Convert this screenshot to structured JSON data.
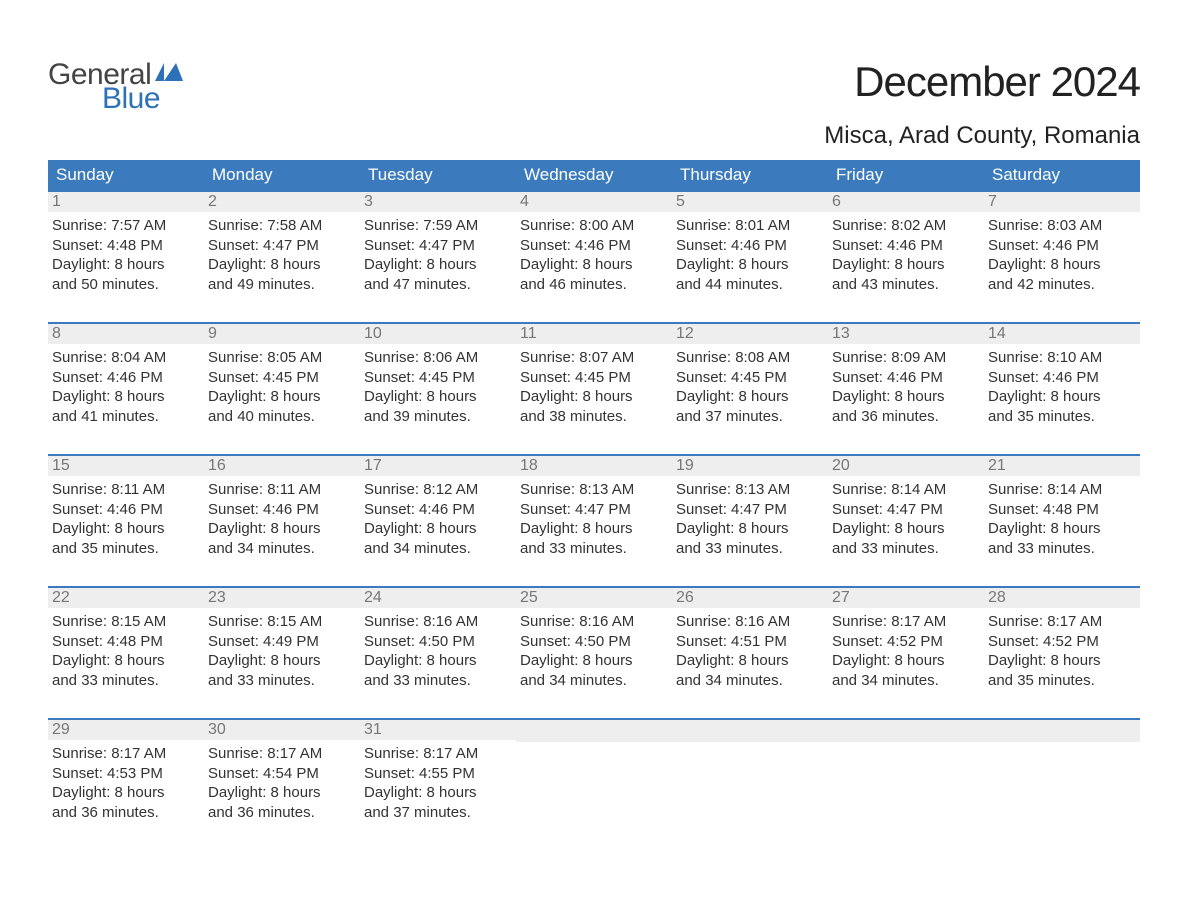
{
  "logo": {
    "text1": "General",
    "text2": "Blue",
    "flag_color": "#2d72b8",
    "text1_color": "#444444",
    "text2_color": "#2d72b8"
  },
  "title": "December 2024",
  "location": "Misca, Arad County, Romania",
  "header_bg": "#3a7abd",
  "header_fg": "#ffffff",
  "daynum_bg": "#eeeeee",
  "daynum_fg": "#777777",
  "body_fg": "#333333",
  "row_border_color": "#3a7abd",
  "weekdays": [
    "Sunday",
    "Monday",
    "Tuesday",
    "Wednesday",
    "Thursday",
    "Friday",
    "Saturday"
  ],
  "weeks": [
    [
      {
        "n": "1",
        "sunrise": "7:57 AM",
        "sunset": "4:48 PM",
        "dl1": "Daylight: 8 hours",
        "dl2": "and 50 minutes."
      },
      {
        "n": "2",
        "sunrise": "7:58 AM",
        "sunset": "4:47 PM",
        "dl1": "Daylight: 8 hours",
        "dl2": "and 49 minutes."
      },
      {
        "n": "3",
        "sunrise": "7:59 AM",
        "sunset": "4:47 PM",
        "dl1": "Daylight: 8 hours",
        "dl2": "and 47 minutes."
      },
      {
        "n": "4",
        "sunrise": "8:00 AM",
        "sunset": "4:46 PM",
        "dl1": "Daylight: 8 hours",
        "dl2": "and 46 minutes."
      },
      {
        "n": "5",
        "sunrise": "8:01 AM",
        "sunset": "4:46 PM",
        "dl1": "Daylight: 8 hours",
        "dl2": "and 44 minutes."
      },
      {
        "n": "6",
        "sunrise": "8:02 AM",
        "sunset": "4:46 PM",
        "dl1": "Daylight: 8 hours",
        "dl2": "and 43 minutes."
      },
      {
        "n": "7",
        "sunrise": "8:03 AM",
        "sunset": "4:46 PM",
        "dl1": "Daylight: 8 hours",
        "dl2": "and 42 minutes."
      }
    ],
    [
      {
        "n": "8",
        "sunrise": "8:04 AM",
        "sunset": "4:46 PM",
        "dl1": "Daylight: 8 hours",
        "dl2": "and 41 minutes."
      },
      {
        "n": "9",
        "sunrise": "8:05 AM",
        "sunset": "4:45 PM",
        "dl1": "Daylight: 8 hours",
        "dl2": "and 40 minutes."
      },
      {
        "n": "10",
        "sunrise": "8:06 AM",
        "sunset": "4:45 PM",
        "dl1": "Daylight: 8 hours",
        "dl2": "and 39 minutes."
      },
      {
        "n": "11",
        "sunrise": "8:07 AM",
        "sunset": "4:45 PM",
        "dl1": "Daylight: 8 hours",
        "dl2": "and 38 minutes."
      },
      {
        "n": "12",
        "sunrise": "8:08 AM",
        "sunset": "4:45 PM",
        "dl1": "Daylight: 8 hours",
        "dl2": "and 37 minutes."
      },
      {
        "n": "13",
        "sunrise": "8:09 AM",
        "sunset": "4:46 PM",
        "dl1": "Daylight: 8 hours",
        "dl2": "and 36 minutes."
      },
      {
        "n": "14",
        "sunrise": "8:10 AM",
        "sunset": "4:46 PM",
        "dl1": "Daylight: 8 hours",
        "dl2": "and 35 minutes."
      }
    ],
    [
      {
        "n": "15",
        "sunrise": "8:11 AM",
        "sunset": "4:46 PM",
        "dl1": "Daylight: 8 hours",
        "dl2": "and 35 minutes."
      },
      {
        "n": "16",
        "sunrise": "8:11 AM",
        "sunset": "4:46 PM",
        "dl1": "Daylight: 8 hours",
        "dl2": "and 34 minutes."
      },
      {
        "n": "17",
        "sunrise": "8:12 AM",
        "sunset": "4:46 PM",
        "dl1": "Daylight: 8 hours",
        "dl2": "and 34 minutes."
      },
      {
        "n": "18",
        "sunrise": "8:13 AM",
        "sunset": "4:47 PM",
        "dl1": "Daylight: 8 hours",
        "dl2": "and 33 minutes."
      },
      {
        "n": "19",
        "sunrise": "8:13 AM",
        "sunset": "4:47 PM",
        "dl1": "Daylight: 8 hours",
        "dl2": "and 33 minutes."
      },
      {
        "n": "20",
        "sunrise": "8:14 AM",
        "sunset": "4:47 PM",
        "dl1": "Daylight: 8 hours",
        "dl2": "and 33 minutes."
      },
      {
        "n": "21",
        "sunrise": "8:14 AM",
        "sunset": "4:48 PM",
        "dl1": "Daylight: 8 hours",
        "dl2": "and 33 minutes."
      }
    ],
    [
      {
        "n": "22",
        "sunrise": "8:15 AM",
        "sunset": "4:48 PM",
        "dl1": "Daylight: 8 hours",
        "dl2": "and 33 minutes."
      },
      {
        "n": "23",
        "sunrise": "8:15 AM",
        "sunset": "4:49 PM",
        "dl1": "Daylight: 8 hours",
        "dl2": "and 33 minutes."
      },
      {
        "n": "24",
        "sunrise": "8:16 AM",
        "sunset": "4:50 PM",
        "dl1": "Daylight: 8 hours",
        "dl2": "and 33 minutes."
      },
      {
        "n": "25",
        "sunrise": "8:16 AM",
        "sunset": "4:50 PM",
        "dl1": "Daylight: 8 hours",
        "dl2": "and 34 minutes."
      },
      {
        "n": "26",
        "sunrise": "8:16 AM",
        "sunset": "4:51 PM",
        "dl1": "Daylight: 8 hours",
        "dl2": "and 34 minutes."
      },
      {
        "n": "27",
        "sunrise": "8:17 AM",
        "sunset": "4:52 PM",
        "dl1": "Daylight: 8 hours",
        "dl2": "and 34 minutes."
      },
      {
        "n": "28",
        "sunrise": "8:17 AM",
        "sunset": "4:52 PM",
        "dl1": "Daylight: 8 hours",
        "dl2": "and 35 minutes."
      }
    ],
    [
      {
        "n": "29",
        "sunrise": "8:17 AM",
        "sunset": "4:53 PM",
        "dl1": "Daylight: 8 hours",
        "dl2": "and 36 minutes."
      },
      {
        "n": "30",
        "sunrise": "8:17 AM",
        "sunset": "4:54 PM",
        "dl1": "Daylight: 8 hours",
        "dl2": "and 36 minutes."
      },
      {
        "n": "31",
        "sunrise": "8:17 AM",
        "sunset": "4:55 PM",
        "dl1": "Daylight: 8 hours",
        "dl2": "and 37 minutes."
      },
      null,
      null,
      null,
      null
    ]
  ],
  "labels": {
    "sunrise_prefix": "Sunrise: ",
    "sunset_prefix": "Sunset: "
  }
}
